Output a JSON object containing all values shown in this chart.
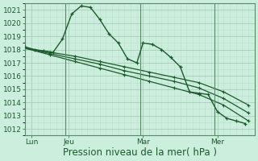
{
  "bg_color": "#cceedd",
  "grid_minor_color": "#bbddd0",
  "grid_major_color": "#aaccbb",
  "line_color": "#1a5c2a",
  "marker_color": "#1a5c2a",
  "ylim": [
    1011.5,
    1021.5
  ],
  "yticks": [
    1012,
    1013,
    1014,
    1015,
    1016,
    1017,
    1018,
    1019,
    1020,
    1021
  ],
  "xlabel": "Pression niveau de la mer( hPa )",
  "xlabel_fontsize": 8.5,
  "tick_fontsize": 6.5,
  "day_labels": [
    "Lun",
    "Jeu",
    "Mar",
    "Mer"
  ],
  "day_positions": [
    2,
    14,
    38,
    62
  ],
  "vline_positions": [
    13,
    37,
    61
  ],
  "xlim": [
    0,
    74
  ],
  "series1_x": [
    0,
    3,
    6,
    9,
    12,
    15,
    18,
    21,
    24,
    27,
    30,
    33,
    36,
    38,
    41,
    44,
    47,
    50,
    53,
    56,
    59,
    62,
    65,
    68,
    71
  ],
  "series1_y": [
    1018.2,
    1018.0,
    1017.9,
    1017.8,
    1018.8,
    1020.7,
    1021.3,
    1021.2,
    1020.3,
    1019.2,
    1018.5,
    1017.3,
    1017.0,
    1018.5,
    1018.4,
    1018.0,
    1017.4,
    1016.7,
    1014.8,
    1014.7,
    1014.6,
    1013.3,
    1012.8,
    1012.6,
    1012.4
  ],
  "series2_x": [
    0,
    8,
    16,
    24,
    32,
    40,
    48,
    56,
    64,
    72
  ],
  "series2_y": [
    1018.1,
    1017.8,
    1017.5,
    1017.1,
    1016.7,
    1016.3,
    1015.9,
    1015.5,
    1014.8,
    1013.8
  ],
  "series3_x": [
    0,
    8,
    16,
    24,
    32,
    40,
    48,
    56,
    64,
    72
  ],
  "series3_y": [
    1018.1,
    1017.7,
    1017.3,
    1016.9,
    1016.4,
    1016.0,
    1015.6,
    1015.1,
    1014.3,
    1013.2
  ],
  "series4_x": [
    0,
    8,
    16,
    24,
    32,
    40,
    48,
    56,
    64,
    72
  ],
  "series4_y": [
    1018.1,
    1017.6,
    1017.1,
    1016.6,
    1016.1,
    1015.6,
    1015.1,
    1014.6,
    1013.8,
    1012.6
  ]
}
